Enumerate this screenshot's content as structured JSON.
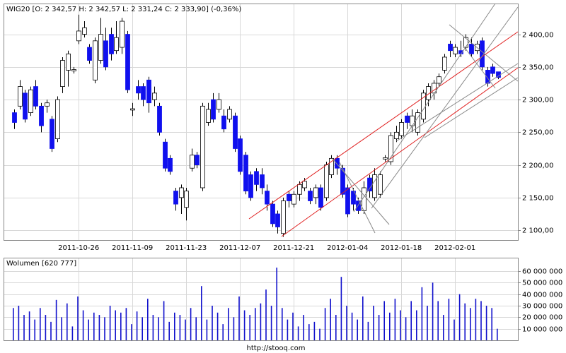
{
  "chart_data": [
    {
      "type": "candlestick",
      "title": "WIG20 [O: 2 342,57  H: 2 342,57  L: 2 331,24  C: 2 333,90] (-0,36%)",
      "categories": [
        null,
        null,
        null,
        null,
        null,
        null,
        null,
        null,
        null,
        null,
        null,
        null,
        "2011-10-26",
        null,
        null,
        null,
        null,
        null,
        null,
        null,
        null,
        null,
        "2011-11-09",
        null,
        null,
        null,
        null,
        null,
        null,
        null,
        null,
        null,
        "2011-11-23",
        null,
        null,
        null,
        null,
        null,
        null,
        null,
        null,
        null,
        "2011-12-07",
        null,
        null,
        null,
        null,
        null,
        null,
        null,
        null,
        null,
        "2011-12-21",
        null,
        null,
        null,
        null,
        null,
        null,
        null,
        null,
        null,
        "2012-01-04",
        null,
        null,
        null,
        null,
        null,
        null,
        null,
        null,
        null,
        "2012-01-18",
        null,
        null,
        null,
        null,
        null,
        null,
        null,
        null,
        null,
        "2012-02-01",
        null,
        null,
        null,
        null,
        null,
        null,
        null,
        null
      ],
      "open": [
        2280,
        2290,
        2310,
        2280,
        2320,
        2290,
        2290,
        2270,
        2240,
        2320,
        2345,
        2344,
        2390,
        2400,
        2380,
        2330,
        2360,
        2390,
        2400,
        2375,
        2380,
        2400,
        2284,
        2320,
        2320,
        2330,
        2300,
        2290,
        2235,
        2210,
        2160,
        2150,
        2135,
        2195,
        2215,
        2165,
        2265,
        2300,
        2285,
        2275,
        2270,
        2275,
        2240,
        2215,
        2185,
        2190,
        2185,
        2160,
        2140,
        2125,
        2095,
        2155,
        2140,
        2155,
        2165,
        2160,
        2150,
        2165,
        2150,
        2185,
        2210,
        2195,
        2165,
        2160,
        2145,
        2130,
        2180,
        2150,
        2155,
        2209,
        2205,
        2240,
        2245,
        2275,
        2260,
        2250,
        2270,
        2300,
        2310,
        2325,
        2345,
        2385,
        2370,
        2375,
        2380,
        2385,
        2375,
        2390,
        2345,
        2350,
        2342.57
      ],
      "high": [
        2285,
        2330,
        2315,
        2320,
        2330,
        2295,
        2300,
        2275,
        2305,
        2365,
        2375,
        2350,
        2430,
        2420,
        2385,
        2395,
        2425,
        2410,
        2410,
        2420,
        2425,
        2405,
        2295,
        2330,
        2325,
        2335,
        2320,
        2295,
        2240,
        2215,
        2165,
        2170,
        2165,
        2225,
        2220,
        2295,
        2295,
        2310,
        2310,
        2285,
        2290,
        2280,
        2245,
        2220,
        2190,
        2195,
        2195,
        2170,
        2145,
        2130,
        2150,
        2160,
        2160,
        2175,
        2180,
        2165,
        2170,
        2170,
        2205,
        2215,
        2215,
        2200,
        2170,
        2165,
        2150,
        2175,
        2185,
        2195,
        2190,
        2215,
        2250,
        2260,
        2270,
        2280,
        2285,
        2285,
        2315,
        2325,
        2330,
        2340,
        2370,
        2390,
        2385,
        2390,
        2400,
        2395,
        2390,
        2395,
        2350,
        2355,
        2342.57
      ],
      "low": [
        2255,
        2285,
        2265,
        2275,
        2285,
        2250,
        2280,
        2220,
        2235,
        2310,
        2320,
        2340,
        2385,
        2395,
        2355,
        2325,
        2355,
        2345,
        2360,
        2370,
        2370,
        2310,
        2275,
        2300,
        2290,
        2280,
        2290,
        2245,
        2190,
        2185,
        2130,
        2125,
        2115,
        2190,
        2195,
        2160,
        2260,
        2265,
        2280,
        2250,
        2265,
        2220,
        2185,
        2155,
        2145,
        2160,
        2155,
        2130,
        2105,
        2095,
        2090,
        2135,
        2135,
        2145,
        2160,
        2140,
        2140,
        2130,
        2145,
        2180,
        2185,
        2150,
        2120,
        2130,
        2125,
        2125,
        2150,
        2145,
        2150,
        2205,
        2200,
        2235,
        2240,
        2255,
        2250,
        2245,
        2265,
        2290,
        2300,
        2320,
        2340,
        2365,
        2365,
        2365,
        2375,
        2365,
        2370,
        2345,
        2320,
        2335,
        2331.24
      ],
      "close": [
        2265,
        2320,
        2270,
        2315,
        2290,
        2260,
        2295,
        2225,
        2300,
        2360,
        2370,
        2346,
        2405,
        2410,
        2360,
        2390,
        2400,
        2350,
        2370,
        2395,
        2420,
        2315,
        2286,
        2310,
        2300,
        2295,
        2310,
        2250,
        2195,
        2190,
        2140,
        2165,
        2160,
        2215,
        2200,
        2290,
        2285,
        2270,
        2300,
        2255,
        2285,
        2225,
        2190,
        2160,
        2150,
        2170,
        2165,
        2140,
        2110,
        2105,
        2145,
        2145,
        2155,
        2170,
        2175,
        2145,
        2165,
        2135,
        2200,
        2210,
        2195,
        2155,
        2125,
        2140,
        2130,
        2165,
        2160,
        2185,
        2185,
        2211,
        2245,
        2250,
        2265,
        2265,
        2275,
        2280,
        2310,
        2320,
        2325,
        2335,
        2365,
        2375,
        2380,
        2370,
        2395,
        2370,
        2385,
        2350,
        2325,
        2340,
        2333.9
      ],
      "up_color": "#ffffff",
      "down_color": "#1010ee",
      "ylim": [
        2085,
        2446
      ],
      "yticks": [
        {
          "value": 2100,
          "label": "2 100,00"
        },
        {
          "value": 2150,
          "label": "2 150,00"
        },
        {
          "value": 2200,
          "label": "2 200,00"
        },
        {
          "value": 2250,
          "label": "2 250,00"
        },
        {
          "value": 2300,
          "label": "2 300,00"
        },
        {
          "value": 2350,
          "label": "2 350,00"
        },
        {
          "value": 2400,
          "label": "2 400,00"
        }
      ],
      "grid": true
    },
    {
      "type": "bar",
      "title": "Wolumen [620 777]",
      "values": [
        28000000,
        30000000,
        22000000,
        25000000,
        18000000,
        28000000,
        22000000,
        16000000,
        35000000,
        20000000,
        32000000,
        12000000,
        38000000,
        26000000,
        18000000,
        24000000,
        22000000,
        20000000,
        30000000,
        26000000,
        24000000,
        28000000,
        14000000,
        25000000,
        20000000,
        36000000,
        22000000,
        20000000,
        34000000,
        16000000,
        24000000,
        22000000,
        18000000,
        28000000,
        20000000,
        47000000,
        18000000,
        30000000,
        24000000,
        14000000,
        28000000,
        20000000,
        38000000,
        26000000,
        22000000,
        28000000,
        32000000,
        44000000,
        30000000,
        63000000,
        28000000,
        18000000,
        24000000,
        12000000,
        22000000,
        14000000,
        16000000,
        10000000,
        28000000,
        36000000,
        22000000,
        55000000,
        30000000,
        24000000,
        18000000,
        38000000,
        16000000,
        30000000,
        22000000,
        34000000,
        24000000,
        36000000,
        26000000,
        20000000,
        34000000,
        26000000,
        46000000,
        30000000,
        50000000,
        34000000,
        22000000,
        36000000,
        18000000,
        40000000,
        32000000,
        28000000,
        36000000,
        34000000,
        30000000,
        28000000,
        10000000
      ],
      "color": "#1010cc",
      "ylim": [
        0,
        71000000
      ],
      "yticks": [
        {
          "value": 10000000,
          "label": "10 000 000"
        },
        {
          "value": 20000000,
          "label": "20 000 000"
        },
        {
          "value": 30000000,
          "label": "30 000 000"
        },
        {
          "value": 40000000,
          "label": "40 000 000"
        },
        {
          "value": 50000000,
          "label": "50 000 000"
        },
        {
          "value": 60000000,
          "label": "60 000 000"
        }
      ],
      "grid": true
    }
  ],
  "footer": "http://stooq.com"
}
